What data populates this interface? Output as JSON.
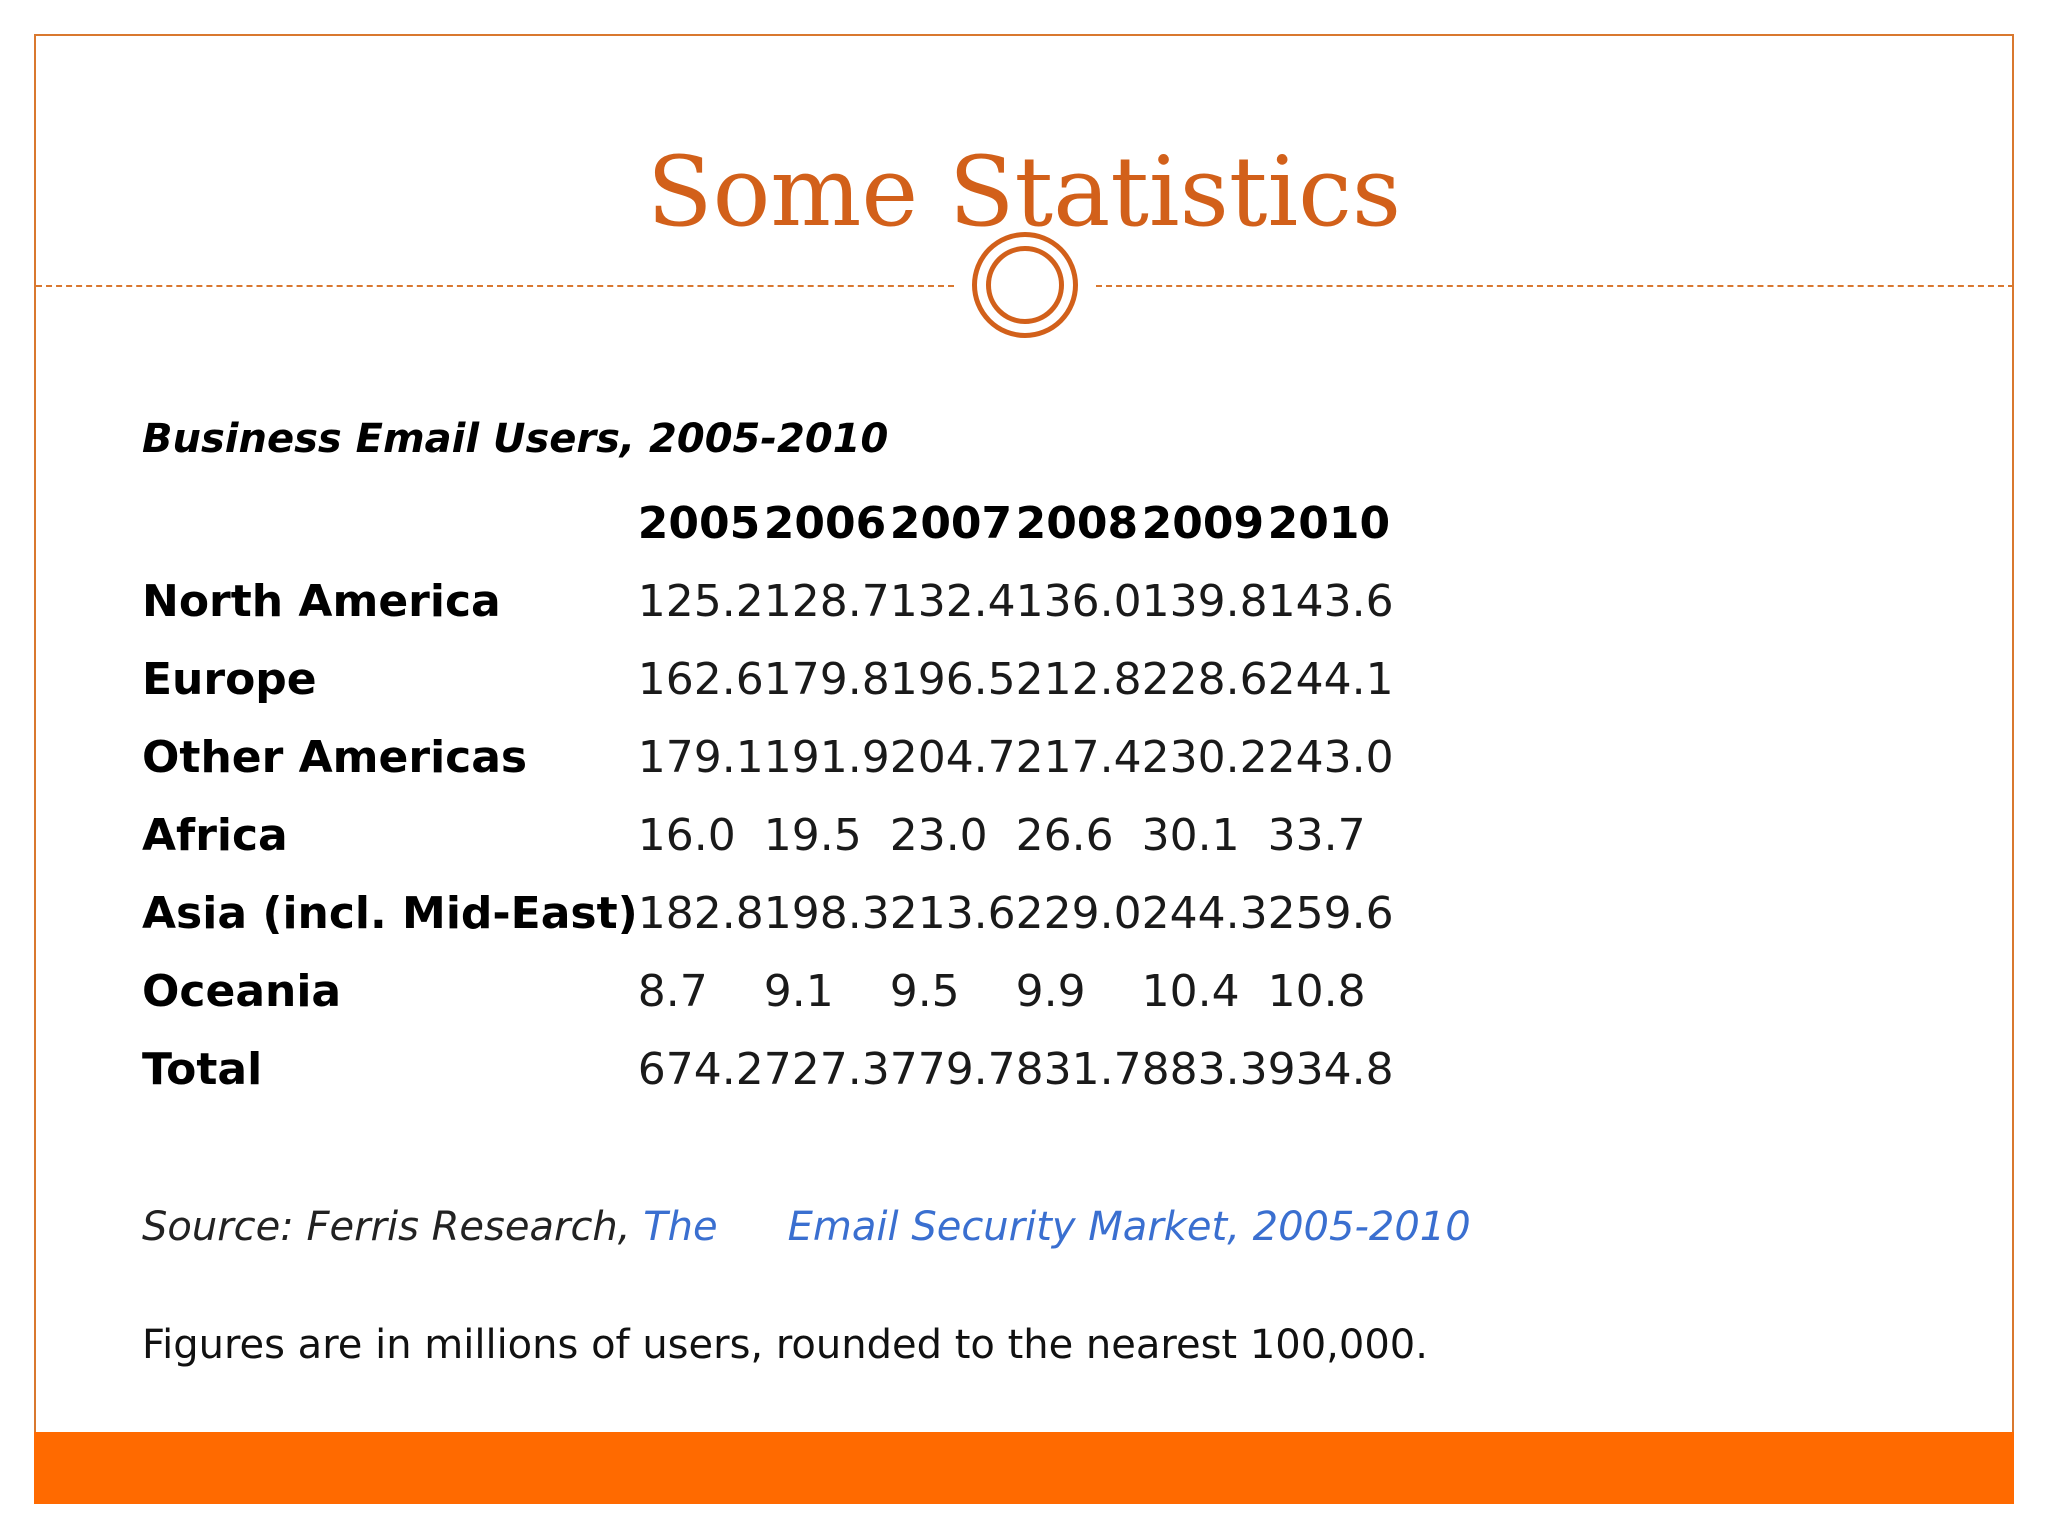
{
  "slide": {
    "title": "Some Statistics",
    "accent_color": "#d2601a",
    "footer_color": "#ff6a00"
  },
  "table": {
    "caption": "Business Email Users, 2005-2010",
    "years": [
      "2005",
      "2006",
      "2007",
      "2008",
      "2009",
      "2010"
    ],
    "rows": [
      {
        "region": "North America",
        "values": [
          "125.2",
          "128.7",
          "132.4",
          "136.0",
          "139.8",
          "143.6"
        ]
      },
      {
        "region": "Europe",
        "values": [
          "162.6",
          "179.8",
          "196.5",
          "212.8",
          "228.6",
          "244.1"
        ]
      },
      {
        "region": "Other Americas",
        "values": [
          "179.1",
          "191.9",
          "204.7",
          "217.4",
          "230.2",
          "243.0"
        ]
      },
      {
        "region": "Africa",
        "values": [
          "16.0",
          "19.5",
          "23.0",
          "26.6",
          "30.1",
          "33.7"
        ]
      },
      {
        "region": "Asia (incl. Mid-East)",
        "values": [
          "182.8",
          "198.3",
          "213.6",
          "229.0",
          "244.3",
          "259.6"
        ]
      },
      {
        "region": "Oceania",
        "values": [
          "8.7",
          "9.1",
          "9.5",
          "9.9",
          "10.4",
          "10.8"
        ]
      },
      {
        "region": "Total",
        "values": [
          "674.2",
          "727.3",
          "779.7",
          "831.7",
          "883.3",
          "934.8"
        ]
      }
    ]
  },
  "source": {
    "prefix": "Source: Ferris Research, ",
    "link_part1": "The",
    "link_part2": "Email Security Market, 2005-2010"
  },
  "note": "Figures are in millions of users, rounded to the nearest 100,000."
}
